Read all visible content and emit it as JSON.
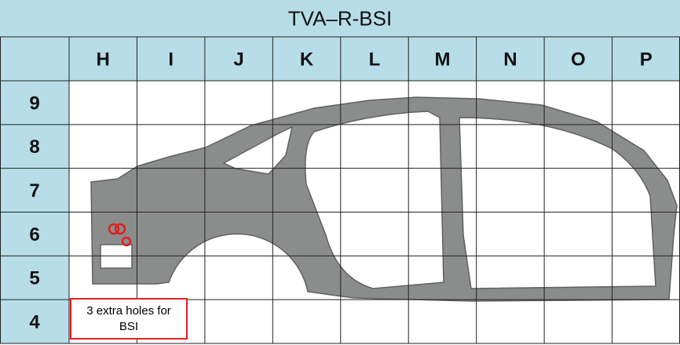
{
  "title": "TVA–R-BSI",
  "columns": [
    "H",
    "I",
    "J",
    "K",
    "L",
    "M",
    "N",
    "O",
    "P"
  ],
  "rows": [
    "9",
    "8",
    "7",
    "6",
    "5",
    "4"
  ],
  "annotation": "3 extra holes for BSI"
}
